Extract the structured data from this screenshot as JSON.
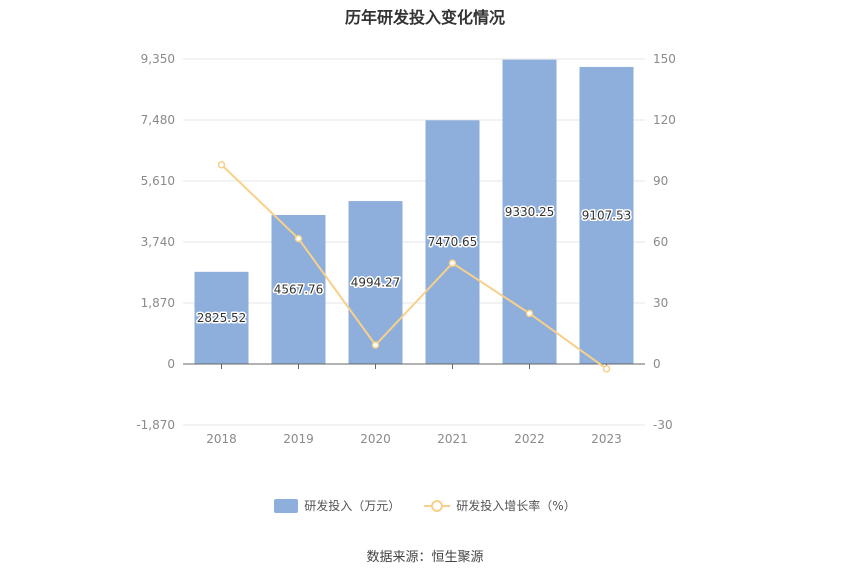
{
  "chart_data": {
    "type": "bar",
    "title": "历年研发投入变化情况",
    "categories": [
      "2018",
      "2019",
      "2020",
      "2021",
      "2022",
      "2023"
    ],
    "series": [
      {
        "name": "研发投入（万元）",
        "type": "bar",
        "axis": "left",
        "color": "#8eaedb",
        "values": [
          2825.52,
          4567.76,
          4994.27,
          7470.65,
          9330.25,
          9107.53
        ],
        "labels": [
          "2825.52",
          "4567.76",
          "4994.27",
          "7470.65",
          "9330.25",
          "9107.53"
        ]
      },
      {
        "name": "研发投入增长率（%）",
        "type": "line",
        "axis": "right",
        "color": "#f7d08a",
        "values": [
          98.0,
          61.66,
          9.34,
          49.58,
          24.89,
          -2.39
        ]
      }
    ],
    "left_axis": {
      "ticks": [
        -1870,
        0,
        1870,
        3740,
        5610,
        7480,
        9350
      ],
      "tick_labels": [
        "-1,870",
        "0",
        "1,870",
        "3,740",
        "5,610",
        "7,480",
        "9,350"
      ],
      "ylim": [
        -1870,
        9350
      ]
    },
    "right_axis": {
      "ticks": [
        -30,
        0,
        30,
        60,
        90,
        120,
        150
      ],
      "tick_labels": [
        "-30",
        "0",
        "30",
        "60",
        "90",
        "120",
        "150"
      ],
      "ylim": [
        -30,
        150
      ]
    },
    "grid": true,
    "legend_position": "bottom"
  },
  "legend": {
    "bar_label": "研发投入（万元）",
    "line_label": "研发投入增长率（%）"
  },
  "source": "数据来源：恒生聚源"
}
